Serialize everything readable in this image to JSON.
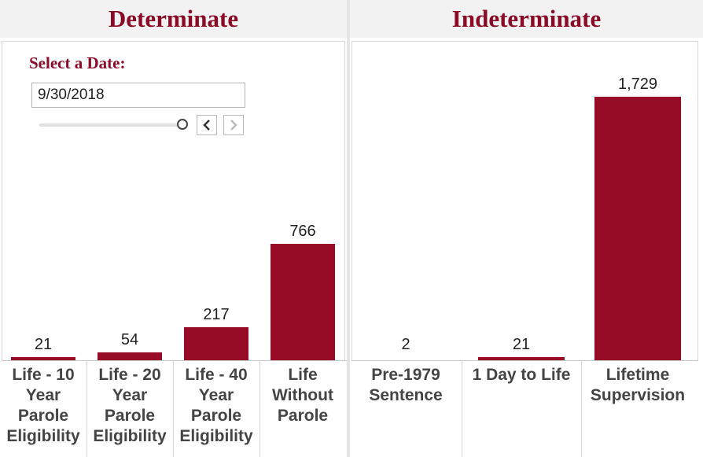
{
  "panels": {
    "left_title": "Determinate",
    "right_title": "Indeterminate"
  },
  "filter": {
    "title": "Select a Date:",
    "value": "9/30/2018",
    "slider_fraction": 1.0
  },
  "icons": {
    "prev": "chevron-left-icon",
    "next": "chevron-right-icon"
  },
  "colors": {
    "bar": "#980b28",
    "title": "#8b0a28"
  },
  "chart_data": [
    {
      "type": "bar",
      "title": "Determinate",
      "categories": [
        "Life - 10\nYear\nParole\nEligibility",
        "Life - 20\nYear\nParole\nEligibility",
        "Life - 40\nYear\nParole\nEligibility",
        "Life\nWithout\nParole"
      ],
      "values": [
        21,
        54,
        217,
        766
      ],
      "data_labels": [
        "21",
        "54",
        "217",
        "766"
      ],
      "ylim": [
        0,
        1729
      ],
      "grid": false,
      "legend": "none"
    },
    {
      "type": "bar",
      "title": "Indeterminate",
      "categories": [
        "Pre-1979\nSentence",
        "1 Day to Life",
        "Lifetime\nSupervision"
      ],
      "values": [
        2,
        21,
        1729
      ],
      "data_labels": [
        "2",
        "21",
        "1,729"
      ],
      "ylim": [
        0,
        1729
      ],
      "grid": false,
      "legend": "none"
    }
  ]
}
